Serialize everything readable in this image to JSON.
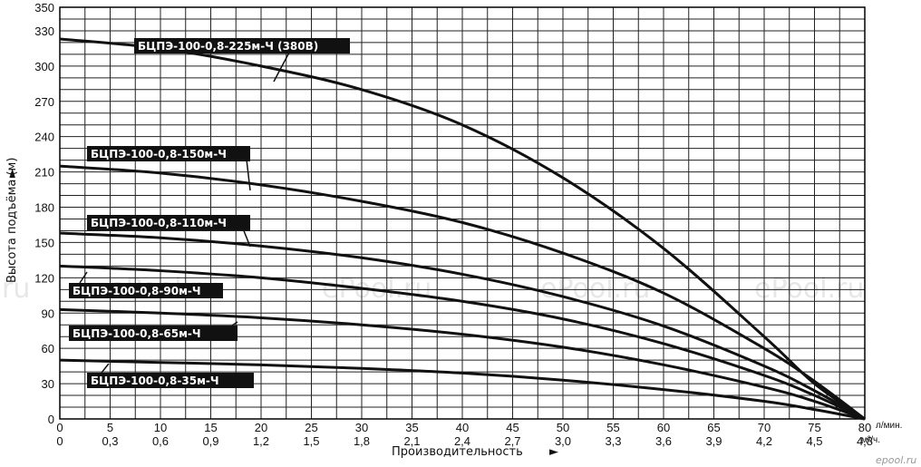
{
  "chart_data": {
    "type": "line",
    "xlabel": "Производительность",
    "ylabel": "Высота подъёма (м)",
    "x_unit_primary": "л/мин.",
    "x_unit_secondary": "м³/ч.",
    "xlim": [
      0,
      80
    ],
    "ylim": [
      0,
      350
    ],
    "x_ticks_primary": [
      "0",
      "5",
      "10",
      "15",
      "20",
      "25",
      "30",
      "35",
      "40",
      "45",
      "50",
      "55",
      "60",
      "65",
      "70",
      "75",
      "80"
    ],
    "x_ticks_secondary": [
      "0",
      "0,3",
      "0,6",
      "0,9",
      "1,2",
      "1,5",
      "1,8",
      "2,1",
      "2,4",
      "2,7",
      "3,0",
      "3,3",
      "3,6",
      "3,9",
      "4,2",
      "4,5",
      "4,8"
    ],
    "y_ticks": [
      "0",
      "30",
      "60",
      "90",
      "120",
      "150",
      "180",
      "210",
      "240",
      "270",
      "300",
      "330",
      "350"
    ],
    "grid": true,
    "series": [
      {
        "name": "БЦПЭ-100-0,8-225м-Ч (380В)",
        "x": [
          0,
          10,
          20,
          30,
          40,
          50,
          60,
          70,
          75,
          80
        ],
        "y": [
          323,
          315,
          300,
          280,
          250,
          205,
          145,
          70,
          30,
          0
        ]
      },
      {
        "name": "БЦПЭ-100-0,8-150м-Ч",
        "x": [
          0,
          10,
          20,
          30,
          40,
          50,
          60,
          70,
          75,
          80
        ],
        "y": [
          215,
          209,
          199,
          185,
          167,
          141,
          107,
          60,
          32,
          0
        ]
      },
      {
        "name": "БЦПЭ-100-0,8-110м-Ч",
        "x": [
          0,
          10,
          20,
          30,
          40,
          50,
          60,
          70,
          75,
          80
        ],
        "y": [
          158,
          154,
          147,
          137,
          123,
          104,
          79,
          45,
          24,
          0
        ]
      },
      {
        "name": "БЦПЭ-100-0,8-90м-Ч",
        "x": [
          0,
          10,
          20,
          30,
          40,
          50,
          60,
          70,
          75,
          80
        ],
        "y": [
          130,
          126,
          120,
          111,
          100,
          85,
          64,
          37,
          20,
          0
        ]
      },
      {
        "name": "БЦПЭ-100-0,8-65м-Ч",
        "x": [
          0,
          10,
          20,
          30,
          40,
          50,
          60,
          70,
          75,
          80
        ],
        "y": [
          93,
          90,
          86,
          80,
          72,
          61,
          46,
          27,
          15,
          0
        ]
      },
      {
        "name": "БЦПЭ-100-0,8-35м-Ч",
        "x": [
          0,
          10,
          20,
          30,
          40,
          50,
          60,
          70,
          75,
          80
        ],
        "y": [
          50,
          48,
          46,
          43,
          39,
          33,
          25,
          15,
          8,
          0
        ]
      }
    ]
  },
  "watermarks": [
    "ru",
    "ePool.ru",
    "ePool.ru",
    "ePool.ru",
    "ePool.ru"
  ],
  "footer_logo": "epool.ru"
}
